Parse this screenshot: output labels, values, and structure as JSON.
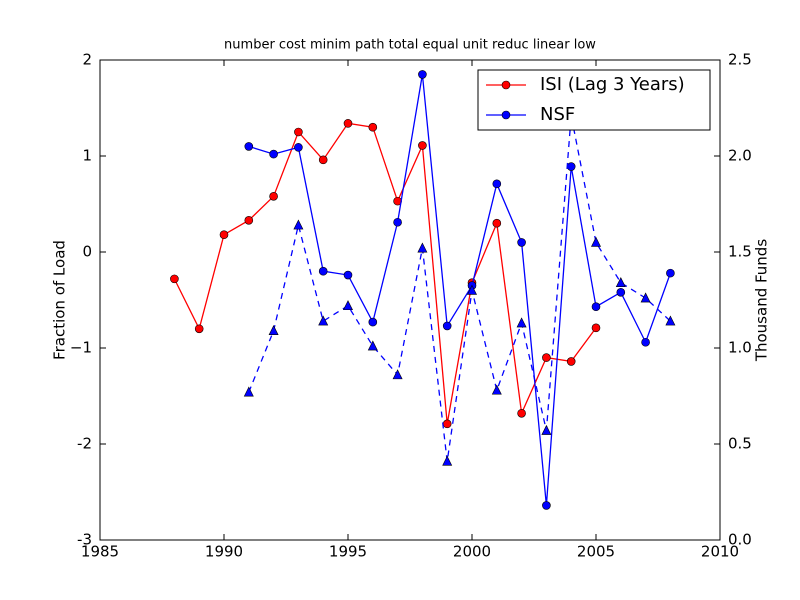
{
  "chart_data": {
    "type": "line",
    "title": "number cost minim path total equal unit reduc linear low",
    "ylabel": "Fraction of Load",
    "y2label": "Thousand Funds",
    "xlim": [
      1985,
      2010
    ],
    "xticks": [
      1985,
      1990,
      1995,
      2000,
      2005,
      2010
    ],
    "ylim": [
      -3,
      2
    ],
    "yticks": [
      -3,
      -2,
      {
        "value": -1,
        "label": "−1"
      },
      0,
      1,
      2
    ],
    "y2lim": [
      0,
      2.5
    ],
    "y2ticks": [
      {
        "value": 0,
        "label": "0.0"
      },
      0.5,
      {
        "value": 1,
        "label": "1.0"
      },
      1.5,
      {
        "value": 2,
        "label": "2.0"
      },
      2.5
    ],
    "legend": "upper right",
    "series": [
      {
        "name": "ISI (Lag 3 Years)",
        "color": "#ff0000",
        "marker": "circle",
        "dash": false,
        "x": [
          1988,
          1989,
          1990,
          1991,
          1992,
          1993,
          1994,
          1995,
          1996,
          1997,
          1998,
          1999,
          2000,
          2001,
          2002,
          2003,
          2004,
          2005
        ],
        "values": [
          -0.28,
          -0.8,
          0.18,
          0.33,
          0.58,
          1.25,
          0.96,
          1.34,
          1.3,
          0.53,
          1.11,
          -1.79,
          -0.32,
          0.3,
          -1.68,
          -1.1,
          -1.14,
          -0.79
        ]
      },
      {
        "name": "NSF",
        "color": "#0000ff",
        "marker": "circle",
        "dash": false,
        "x": [
          1991,
          1992,
          1993,
          1994,
          1995,
          1996,
          1997,
          1998,
          1999,
          2000,
          2001,
          2002,
          2003,
          2004,
          2005,
          2006,
          2007,
          2008
        ],
        "values": [
          1.1,
          1.02,
          1.09,
          -0.2,
          -0.24,
          -0.73,
          0.31,
          1.85,
          -0.77,
          -0.35,
          0.71,
          0.1,
          -2.64,
          0.89,
          -0.57,
          -0.42,
          -0.94,
          -0.22
        ]
      },
      {
        "color": "#0000ff",
        "marker": "triangle",
        "dash": true,
        "axis": "y2",
        "x": [
          1991,
          1992,
          1993,
          1994,
          1995,
          1996,
          1997,
          1998,
          1999,
          2000,
          2001,
          2002,
          2003,
          2004,
          2005,
          2006,
          2007,
          2008
        ],
        "values": [
          0.77,
          1.09,
          1.64,
          1.14,
          1.22,
          1.01,
          0.86,
          1.52,
          0.41,
          1.3,
          0.78,
          1.13,
          0.57,
          2.21,
          1.55,
          1.34,
          1.26,
          1.14
        ]
      }
    ]
  }
}
